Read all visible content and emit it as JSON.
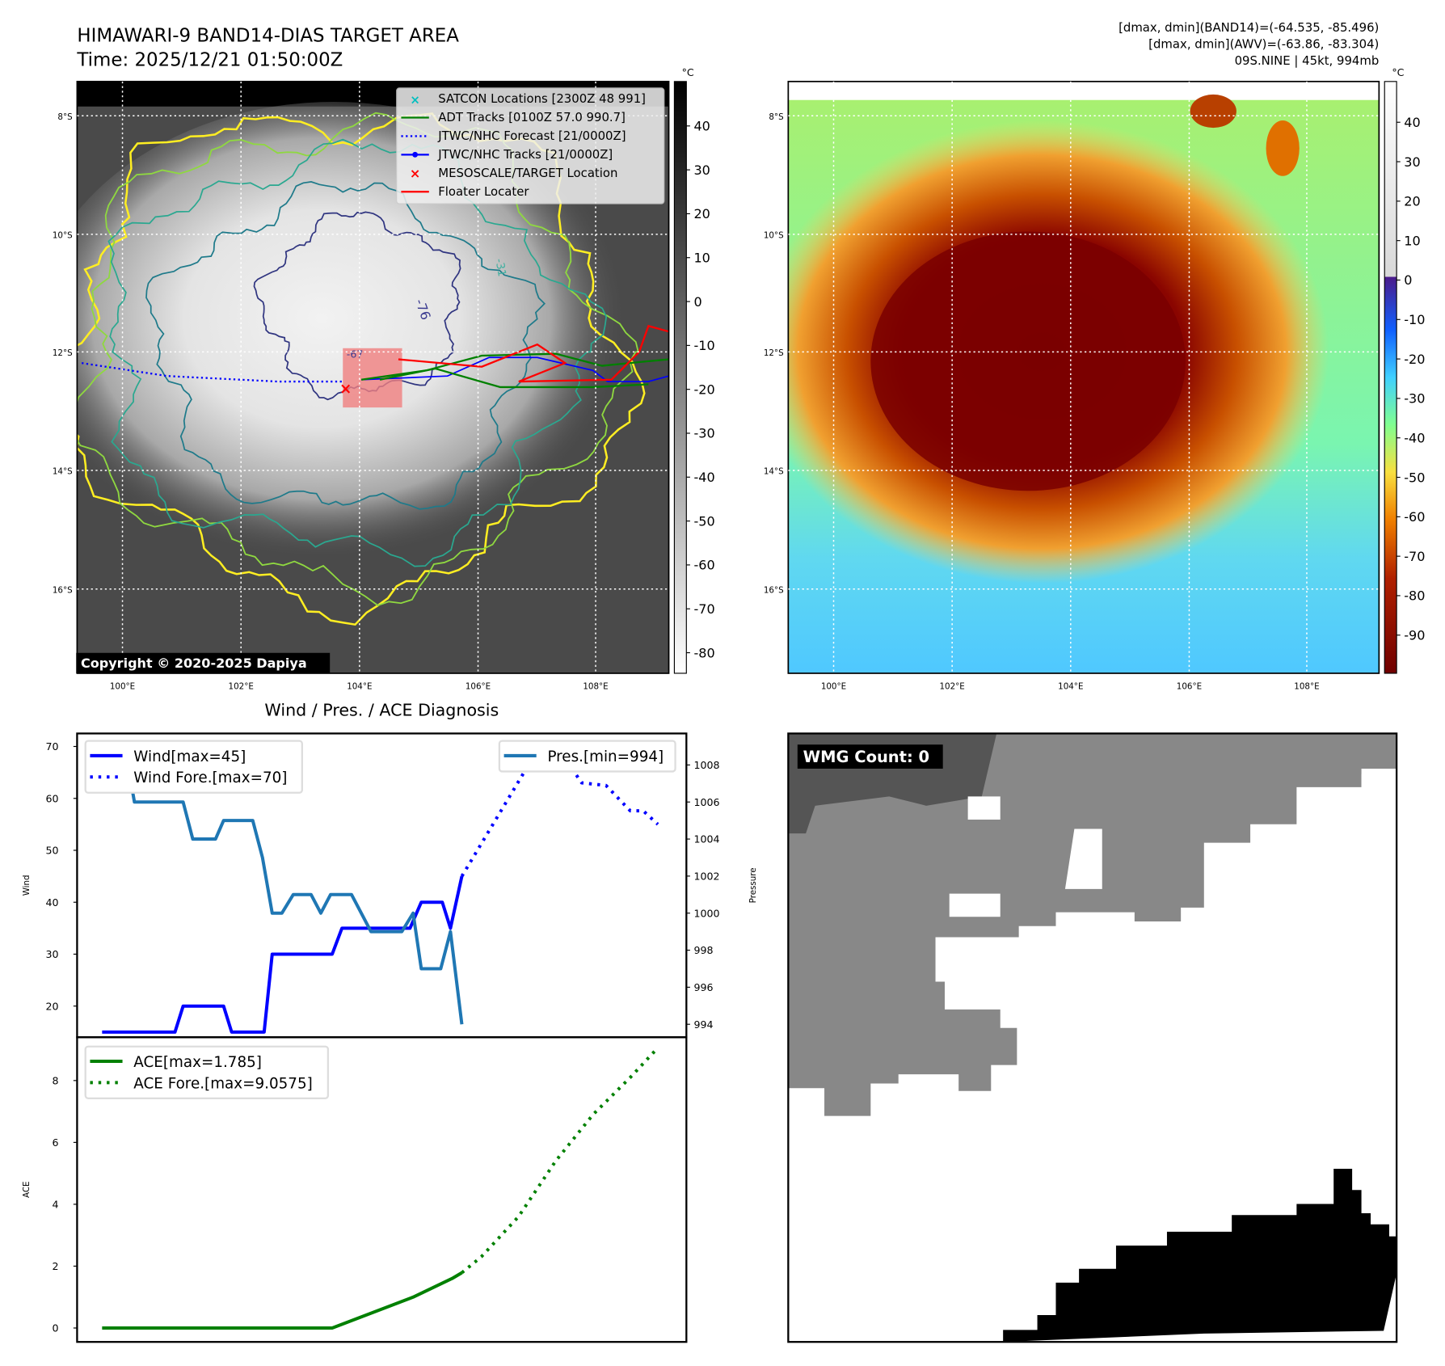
{
  "header": {
    "title": "HIMAWARI-9 BAND14-DIAS TARGET AREA",
    "time": "Time: 2025/12/21 01:50:00Z",
    "stats_band14": "[dmax, dmin](BAND14)=(-64.535, -85.496)",
    "stats_awv": "[dmax, dmin](AWV)=(-63.86, -83.304)",
    "storm": "09S.NINE | 45kt, 994mb"
  },
  "map": {
    "lat_labels": [
      "8°S",
      "10°S",
      "12°S",
      "14°S",
      "16°S"
    ],
    "lon_labels": [
      "100°E",
      "102°E",
      "104°E",
      "106°E",
      "108°E"
    ],
    "unit": "°C",
    "contour_labels": [
      "-76",
      "-31",
      "-67"
    ],
    "copyright": "Copyright © 2020-2025 Dapiya",
    "legend": [
      {
        "label": "SATCON Locations [2300Z 48 991]",
        "color": "#00bfbf"
      },
      {
        "label": "ADT Tracks [0100Z 57.0 990.7]",
        "color": "#008000"
      },
      {
        "label": "JTWC/NHC Forecast [21/0000Z]",
        "color": "#0000ff"
      },
      {
        "label": "JTWC/NHC Tracks [21/0000Z]",
        "color": "#0000ff"
      },
      {
        "label": "MESOSCALE/TARGET Location",
        "color": "#ff0000"
      },
      {
        "label": "Floater Locater",
        "color": "#ff0000"
      }
    ],
    "left_colorbar_ticks": [
      "40",
      "30",
      "20",
      "10",
      "0",
      "-10",
      "-20",
      "-30",
      "-40",
      "-50",
      "-60",
      "-70",
      "-80"
    ],
    "right_colorbar_ticks": [
      "40",
      "30",
      "20",
      "10",
      "0",
      "-10",
      "-20",
      "-30",
      "-40",
      "-50",
      "-60",
      "-70",
      "-80",
      "-90"
    ]
  },
  "wmg": {
    "label": "WMG Count: 0"
  },
  "chart_data": [
    {
      "type": "line",
      "title": "Wind / Pres. / ACE Diagnosis",
      "ylabel": "Wind",
      "y2label": "Pressure",
      "xlim": [
        -15.4,
        360.6
      ],
      "ylim": [
        14.0,
        72.5
      ],
      "y2lim": [
        993.3,
        1009.7
      ],
      "yticks": [
        20,
        30,
        40,
        50,
        60,
        70
      ],
      "y2ticks": [
        994,
        996,
        998,
        1000,
        1002,
        1004,
        1006,
        1008
      ],
      "series": [
        {
          "name": "Wind[max=45]",
          "axis": "left",
          "color": "#0000ff",
          "style": "solid",
          "x": [
            0,
            45,
            50,
            75,
            80,
            100,
            105,
            142,
            148,
            190,
            197,
            210,
            215,
            222
          ],
          "y": [
            15,
            15,
            20,
            20,
            15,
            15,
            30,
            30,
            35,
            35,
            40,
            40,
            35,
            45
          ]
        },
        {
          "name": "Wind Fore.[max=70]",
          "axis": "left",
          "color": "#0000ff",
          "style": "dotted",
          "x": [
            222,
            270,
            285,
            296,
            311,
            326,
            334,
            343
          ],
          "y": [
            45,
            70,
            68,
            63,
            62.5,
            57.6,
            57.6,
            55
          ]
        },
        {
          "name": "Pres.[min=994]",
          "axis": "right",
          "color": "#1f77b4",
          "style": "solid",
          "x": [
            0,
            14,
            20,
            50,
            56,
            70,
            75,
            93,
            99,
            105,
            111,
            118,
            129,
            135,
            141,
            154,
            166,
            185,
            192,
            197,
            209,
            215,
            222
          ],
          "y": [
            1009,
            1009,
            1006,
            1006,
            1004,
            1004,
            1005,
            1005,
            1003,
            1000,
            1000,
            1001,
            1001,
            1000,
            1001,
            1001,
            999,
            999,
            1000,
            997,
            997,
            999,
            994
          ]
        }
      ]
    },
    {
      "type": "line",
      "ylabel": "ACE",
      "xlim": [
        -15.4,
        360.6
      ],
      "ylim": [
        -0.45,
        9.4
      ],
      "yticks": [
        0,
        2,
        4,
        6,
        8
      ],
      "series": [
        {
          "name": "ACE[max=1.785]",
          "color": "#008000",
          "style": "solid",
          "x": [
            0,
            142,
            192,
            216,
            222
          ],
          "y": [
            0,
            0,
            1.0,
            1.6,
            1.785
          ]
        },
        {
          "name": "ACE Fore.[max=9.0575]",
          "color": "#008000",
          "style": "dotted",
          "x": [
            222,
            234,
            257,
            280,
            303,
            326,
            343
          ],
          "y": [
            1.785,
            2.3,
            3.6,
            5.4,
            6.9,
            8.1,
            9.0575
          ]
        }
      ]
    }
  ]
}
